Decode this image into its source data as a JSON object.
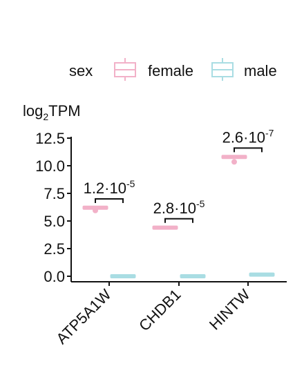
{
  "chart_data": {
    "type": "box",
    "legend": {
      "title": "sex",
      "placement": "top",
      "entries": [
        {
          "label": "female",
          "color": "#f2b1c8"
        },
        {
          "label": "male",
          "color": "#a9dde3"
        }
      ]
    },
    "ylabel_base": "log",
    "ylabel_sub": "2",
    "ylabel_rest": "TPM",
    "ylim": [
      0,
      12.5
    ],
    "yticks": [
      {
        "value": 0,
        "label": "0.0"
      },
      {
        "value": 2.5,
        "label": "2.5"
      },
      {
        "value": 5,
        "label": "5.0"
      },
      {
        "value": 7.5,
        "label": "7.5"
      },
      {
        "value": 10,
        "label": "10.0"
      },
      {
        "value": 12.5,
        "label": "12.5"
      }
    ],
    "categories": [
      "ATP5A1W",
      "CHDB1",
      "HINTW"
    ],
    "series": [
      {
        "name": "female",
        "color": "#f2b1c8",
        "values": [
          6.2,
          4.4,
          10.8
        ],
        "outliers": [
          [
            5.95
          ],
          [],
          [
            10.35
          ]
        ]
      },
      {
        "name": "male",
        "color": "#a9dde3",
        "values": [
          0.0,
          0.0,
          0.15
        ],
        "outliers": [
          [],
          [],
          []
        ]
      }
    ],
    "pvalues": [
      {
        "mantissa": "1.2·10",
        "exponent": "-5",
        "y_bracket": 7.0
      },
      {
        "mantissa": "2.8·10",
        "exponent": "-5",
        "y_bracket": 5.2
      },
      {
        "mantissa": "2.6·10",
        "exponent": "-7",
        "y_bracket": 11.6
      }
    ]
  }
}
